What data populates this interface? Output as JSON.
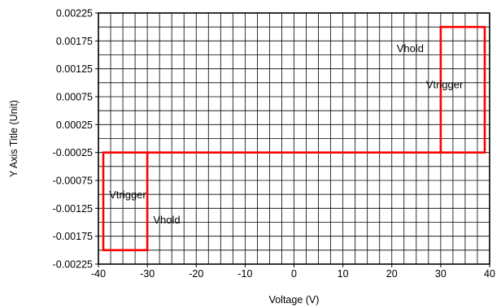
{
  "chart_data": {
    "type": "line",
    "xlabel": "Voltage (V)",
    "ylabel": "Y Axis Title (Unit)",
    "xlim": [
      -40,
      40
    ],
    "ylim": [
      -0.00225,
      0.00225
    ],
    "x_ticks": [
      -40,
      -30,
      -20,
      -10,
      0,
      10,
      20,
      30,
      40
    ],
    "x_tick_labels": [
      "-40",
      "-30",
      "-20",
      "-10",
      "0",
      "10",
      "20",
      "30",
      "40"
    ],
    "y_ticks": [
      0.00225,
      0.00175,
      0.00125,
      0.00075,
      0.00025,
      -0.00025,
      -0.00075,
      -0.00125,
      -0.00175,
      -0.00225
    ],
    "y_tick_labels": [
      "0.00225",
      "0.00175",
      "0.00125",
      "0.00075",
      "0.00025",
      "-0.00025",
      "-0.00075",
      "-0.00125",
      "-0.00175",
      "-0.00225"
    ],
    "grid": true,
    "grid_x_step": 2.5,
    "grid_y_step": 0.00025,
    "series": [
      {
        "color": "#ff0000",
        "x": [
          -30,
          -30,
          -39,
          -39,
          -30,
          -30,
          30,
          30,
          39,
          39,
          30,
          30
        ],
        "y": [
          -0.00025,
          -0.002,
          -0.002,
          -0.00025,
          -0.00025,
          -0.00025,
          -0.00025,
          0.002,
          0.002,
          -0.00025,
          -0.00025,
          -0.00025
        ]
      }
    ],
    "annotations": [
      {
        "text": "Vhold",
        "x": 21,
        "y": 0.00155
      },
      {
        "text": "Vtrigger",
        "x": 27,
        "y": 0.0009
      },
      {
        "text": "Vtrigger",
        "x": -37.8,
        "y": -0.00107
      },
      {
        "text": "Vhold",
        "x": -28.8,
        "y": -0.00152
      }
    ]
  }
}
